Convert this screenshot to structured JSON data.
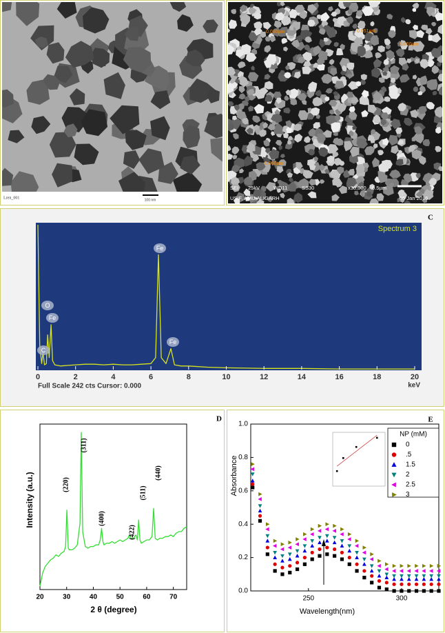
{
  "panels": {
    "a": {
      "file_label": "Lren_001",
      "scale_bar": "100 nm"
    },
    "b": {
      "label": "B",
      "measurements": [
        "0.060µm",
        "0.051µm",
        "0.060µm",
        "0.060µm"
      ],
      "info": [
        "SEI",
        "25kV",
        "WD11",
        "SS30",
        "x30,000",
        "0.5µm"
      ],
      "lab": "USIF, AMU,ALIGARH",
      "date": "05 Jan 2016"
    }
  },
  "chart_data": [
    {
      "type": "line",
      "panel_label": "C",
      "title": "Spectrum 3",
      "caption": "Full Scale 242 cts Cursor: 0.000",
      "xlabel": "keV",
      "x": [
        0,
        0.1,
        0.2,
        0.27,
        0.35,
        0.45,
        0.52,
        0.6,
        0.7,
        0.78,
        0.9,
        1.2,
        1.6,
        2,
        2.5,
        3,
        3.5,
        4,
        4.5,
        5,
        5.5,
        6,
        6.25,
        6.4,
        6.55,
        6.8,
        7.06,
        7.25,
        7.6,
        8,
        9,
        10,
        12,
        14,
        16,
        18,
        20
      ],
      "values": [
        242,
        40,
        10,
        29,
        8,
        10,
        58,
        20,
        75,
        15,
        8,
        6,
        7,
        8,
        9,
        9,
        8,
        9,
        8,
        8,
        9,
        10,
        20,
        192,
        20,
        10,
        35,
        8,
        6,
        6,
        4,
        3,
        2,
        2,
        1,
        1,
        1
      ],
      "color": "#d8e41c",
      "background": "#1f3a7c",
      "xlim": [
        0,
        20
      ],
      "ylim": [
        0,
        242
      ],
      "xticks": [
        0,
        2,
        4,
        6,
        8,
        10,
        12,
        14,
        16,
        18,
        20
      ],
      "annotations": [
        "O",
        "Fe",
        "C",
        "Fe",
        "Fe"
      ]
    },
    {
      "type": "line",
      "panel_label": "D",
      "xlabel": "2 θ (degree)",
      "ylabel": "Intensity (a.u.)",
      "x": [
        20,
        21,
        22,
        23,
        24,
        25,
        26,
        27,
        28,
        29,
        29.6,
        30.1,
        30.6,
        31,
        32,
        33,
        34,
        35,
        35.5,
        36,
        37,
        38,
        39,
        40,
        41,
        42,
        42.6,
        43.1,
        43.6,
        44,
        45,
        46,
        47,
        48,
        49,
        50,
        51,
        52,
        53,
        53.5,
        54,
        55,
        56,
        56.5,
        57,
        57.5,
        58,
        59,
        60,
        61,
        62,
        62.6,
        63.2,
        64,
        65,
        66,
        67,
        68,
        69,
        70,
        71,
        72,
        73,
        74,
        75
      ],
      "values": [
        2,
        10,
        14,
        16,
        18,
        19,
        21,
        20,
        22,
        23,
        26,
        48,
        25,
        24,
        24,
        25,
        27,
        40,
        95,
        35,
        26,
        25,
        26,
        26,
        27,
        27,
        30,
        37,
        29,
        27,
        28,
        28,
        29,
        28,
        29,
        30,
        29,
        30,
        31,
        33,
        31,
        31,
        33,
        30,
        42,
        30,
        28,
        29,
        30,
        30,
        32,
        49,
        31,
        30,
        31,
        31,
        32,
        32,
        33,
        32,
        34,
        35,
        35,
        37,
        38
      ],
      "color": "#33dd33",
      "xlim": [
        20,
        75
      ],
      "ylim": [
        0,
        100
      ],
      "xticks": [
        20,
        30,
        40,
        50,
        60,
        70
      ],
      "annotations": [
        "(220)",
        "(311)",
        "(400)",
        "(422)",
        "(511)",
        "(440)"
      ]
    },
    {
      "type": "scatter",
      "panel_label": "E",
      "xlabel": "Wavelength(nm)",
      "ylabel": "Absorbance",
      "legend": "upper right",
      "legend_title": "NP (mM)",
      "x": [
        220,
        224,
        228,
        232,
        236,
        240,
        244,
        248,
        252,
        256,
        260,
        264,
        268,
        272,
        276,
        280,
        284,
        288,
        292,
        296,
        300,
        304,
        308,
        312,
        316,
        320
      ],
      "series": [
        {
          "name": "0",
          "color": "#000000",
          "marker": "square",
          "values": [
            0.62,
            0.42,
            0.22,
            0.12,
            0.1,
            0.11,
            0.13,
            0.16,
            0.19,
            0.21,
            0.22,
            0.21,
            0.19,
            0.16,
            0.12,
            0.08,
            0.05,
            0.02,
            0.01,
            0,
            0,
            0,
            0,
            0,
            0,
            0
          ]
        },
        {
          "name": ".5",
          "color": "#e00000",
          "marker": "circle",
          "values": [
            0.64,
            0.45,
            0.26,
            0.16,
            0.14,
            0.15,
            0.17,
            0.2,
            0.23,
            0.25,
            0.26,
            0.25,
            0.23,
            0.2,
            0.16,
            0.12,
            0.09,
            0.06,
            0.05,
            0.04,
            0.04,
            0.04,
            0.04,
            0.04,
            0.04,
            0.04
          ]
        },
        {
          "name": "1.5",
          "color": "#0000e0",
          "marker": "triangle-up",
          "values": [
            0.66,
            0.48,
            0.3,
            0.2,
            0.18,
            0.19,
            0.21,
            0.24,
            0.27,
            0.29,
            0.3,
            0.29,
            0.27,
            0.24,
            0.2,
            0.16,
            0.12,
            0.09,
            0.08,
            0.07,
            0.07,
            0.07,
            0.07,
            0.07,
            0.07,
            0.07
          ]
        },
        {
          "name": "2",
          "color": "#008080",
          "marker": "triangle-down",
          "values": [
            0.7,
            0.51,
            0.33,
            0.23,
            0.21,
            0.22,
            0.24,
            0.27,
            0.3,
            0.32,
            0.33,
            0.32,
            0.3,
            0.27,
            0.23,
            0.19,
            0.15,
            0.12,
            0.1,
            0.09,
            0.09,
            0.09,
            0.09,
            0.09,
            0.09,
            0.09
          ]
        },
        {
          "name": "2.5",
          "color": "#e000e0",
          "marker": "triangle-left",
          "values": [
            0.73,
            0.55,
            0.37,
            0.27,
            0.25,
            0.26,
            0.28,
            0.31,
            0.34,
            0.36,
            0.37,
            0.36,
            0.34,
            0.31,
            0.27,
            0.23,
            0.19,
            0.15,
            0.13,
            0.12,
            0.12,
            0.12,
            0.12,
            0.12,
            0.12,
            0.12
          ]
        },
        {
          "name": "3",
          "color": "#808000",
          "marker": "triangle-right",
          "values": [
            0.76,
            0.58,
            0.4,
            0.3,
            0.28,
            0.29,
            0.31,
            0.34,
            0.37,
            0.39,
            0.4,
            0.39,
            0.37,
            0.34,
            0.3,
            0.26,
            0.22,
            0.18,
            0.16,
            0.15,
            0.15,
            0.15,
            0.15,
            0.15,
            0.15,
            0.15
          ]
        }
      ],
      "xlim": [
        219,
        320
      ],
      "ylim": [
        0,
        1
      ],
      "xticks": [
        250,
        300
      ],
      "yticks": [
        {
          "value": 0,
          "label": "0.0"
        },
        0.2,
        0.4,
        0.6,
        0.8,
        {
          "value": 1,
          "label": "1.0"
        }
      ]
    },
    {
      "type": "scatter",
      "x": [
        0.06,
        0.19,
        0.46,
        0.89
      ],
      "values": [
        0.24,
        0.51,
        0.74,
        0.93
      ],
      "color": "#000000",
      "trendline": "#d04040",
      "xlim": [
        0,
        1
      ],
      "ylim": [
        0,
        1
      ]
    }
  ]
}
